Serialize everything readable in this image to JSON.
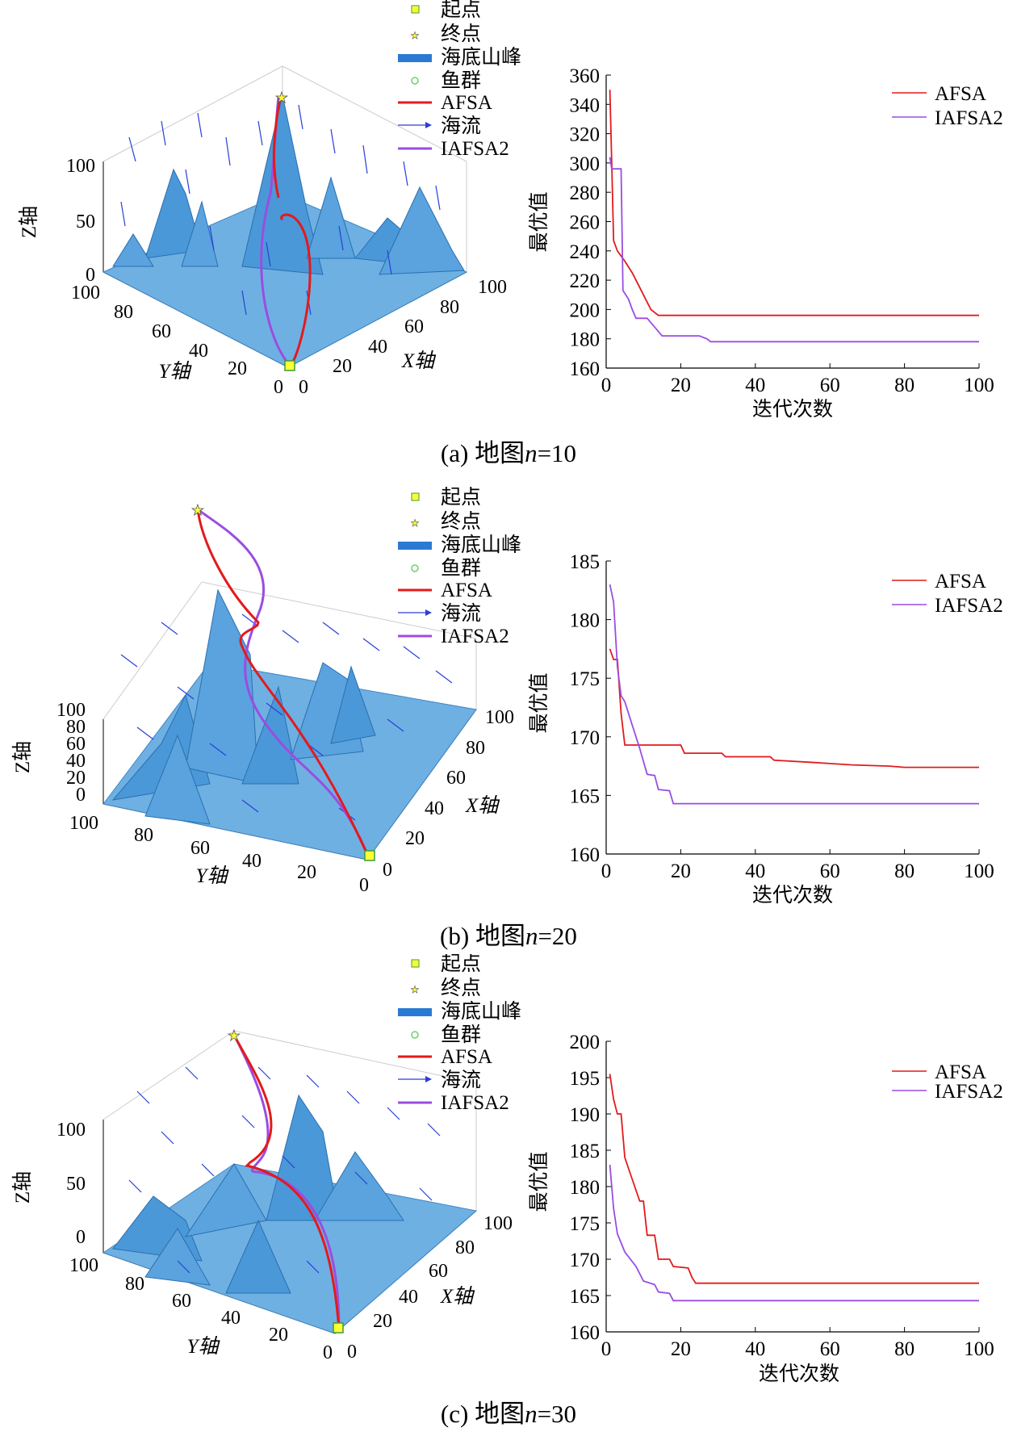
{
  "chart_data": [
    {
      "type": "line",
      "caption": "(a) 地图n=10",
      "caption_prefix": "(a) 地图",
      "caption_var": "n",
      "caption_suffix": "=10",
      "xlabel": "迭代次数",
      "ylabel": "最优值",
      "xlim": [
        0,
        100
      ],
      "ylim": [
        160,
        360
      ],
      "xticks": [
        0,
        20,
        40,
        60,
        80,
        100
      ],
      "yticks": [
        160,
        180,
        200,
        220,
        240,
        260,
        280,
        300,
        320,
        340,
        360
      ],
      "series": [
        {
          "name": "AFSA",
          "color": "#e31a1c",
          "points": [
            [
              1,
              350
            ],
            [
              1.5,
              300
            ],
            [
              2,
              247
            ],
            [
              3,
              240
            ],
            [
              5,
              233
            ],
            [
              7,
              225
            ],
            [
              8,
              220
            ],
            [
              10,
              210
            ],
            [
              12,
              200
            ],
            [
              14,
              196
            ],
            [
              100,
              196
            ]
          ]
        },
        {
          "name": "IAFSA2",
          "color": "#9b4de0",
          "points": [
            [
              1,
              304
            ],
            [
              1.5,
              296
            ],
            [
              4,
              296
            ],
            [
              4.5,
              213
            ],
            [
              6,
              207
            ],
            [
              7,
              200
            ],
            [
              8,
              194
            ],
            [
              11,
              194
            ],
            [
              13,
              188
            ],
            [
              15,
              182
            ],
            [
              25,
              182
            ],
            [
              27,
              180
            ],
            [
              28,
              178
            ],
            [
              100,
              178
            ]
          ]
        }
      ],
      "scene3d": {
        "zlabel": "Z轴",
        "ylabel": "Y轴",
        "xlabel": "X轴",
        "zticks": [
          "0",
          "50",
          "100"
        ],
        "yticks": [
          "100",
          "80",
          "60",
          "40",
          "20",
          "0"
        ],
        "xticks": [
          "0",
          "20",
          "40",
          "60",
          "80",
          "100"
        ],
        "legend": [
          "起点",
          "终点",
          "海底山峰",
          "鱼群",
          "AFSA",
          "海流",
          "IAFSA2"
        ]
      }
    },
    {
      "type": "line",
      "caption": "(b) 地图n=20",
      "caption_prefix": "(b) 地图",
      "caption_var": "n",
      "caption_suffix": "=20",
      "xlabel": "迭代次数",
      "ylabel": "最优值",
      "xlim": [
        0,
        100
      ],
      "ylim": [
        160,
        185
      ],
      "xticks": [
        0,
        20,
        40,
        60,
        80,
        100
      ],
      "yticks": [
        160,
        165,
        170,
        175,
        180,
        185
      ],
      "series": [
        {
          "name": "AFSA",
          "color": "#e31a1c",
          "points": [
            [
              1,
              177.5
            ],
            [
              2,
              176.6
            ],
            [
              3,
              176.6
            ],
            [
              4,
              172
            ],
            [
              5,
              169.3
            ],
            [
              20,
              169.3
            ],
            [
              21,
              168.6
            ],
            [
              31,
              168.6
            ],
            [
              32,
              168.3
            ],
            [
              44,
              168.3
            ],
            [
              45,
              168
            ],
            [
              56,
              167.8
            ],
            [
              66,
              167.6
            ],
            [
              76,
              167.5
            ],
            [
              80,
              167.4
            ],
            [
              100,
              167.4
            ]
          ]
        },
        {
          "name": "IAFSA2",
          "color": "#9b4de0",
          "points": [
            [
              1,
              183
            ],
            [
              2,
              181.5
            ],
            [
              3,
              176
            ],
            [
              4,
              173.5
            ],
            [
              5,
              173
            ],
            [
              7,
              171
            ],
            [
              9,
              169
            ],
            [
              11,
              166.8
            ],
            [
              13,
              166.7
            ],
            [
              14,
              165.5
            ],
            [
              17,
              165.4
            ],
            [
              18,
              164.3
            ],
            [
              100,
              164.3
            ]
          ]
        }
      ],
      "scene3d": {
        "zlabel": "Z轴",
        "ylabel": "Y轴",
        "xlabel": "X轴",
        "zticks": [
          "0",
          "20",
          "40",
          "60",
          "80",
          "100"
        ],
        "yticks": [
          "100",
          "80",
          "60",
          "40",
          "20",
          "0"
        ],
        "xticks": [
          "0",
          "20",
          "40",
          "60",
          "80",
          "100"
        ],
        "legend": [
          "起点",
          "终点",
          "海底山峰",
          "鱼群",
          "AFSA",
          "海流",
          "IAFSA2"
        ]
      }
    },
    {
      "type": "line",
      "caption": "(c) 地图n=30",
      "caption_prefix": "(c) 地图",
      "caption_var": "n",
      "caption_suffix": "=30",
      "xlabel": "迭代次数",
      "ylabel": "最优值",
      "xlim": [
        0,
        100
      ],
      "ylim": [
        160,
        200
      ],
      "xticks": [
        0,
        20,
        40,
        60,
        80,
        100
      ],
      "yticks": [
        160,
        165,
        170,
        175,
        180,
        185,
        190,
        195,
        200
      ],
      "series": [
        {
          "name": "AFSA",
          "color": "#e31a1c",
          "points": [
            [
              1,
              195.5
            ],
            [
              2,
              192
            ],
            [
              3,
              190
            ],
            [
              4,
              190
            ],
            [
              5,
              184
            ],
            [
              7,
              181
            ],
            [
              9,
              178
            ],
            [
              10,
              178
            ],
            [
              11,
              173.3
            ],
            [
              13,
              173.3
            ],
            [
              14,
              170
            ],
            [
              17,
              170
            ],
            [
              18,
              169
            ],
            [
              22,
              168.8
            ],
            [
              23,
              167.5
            ],
            [
              24,
              166.7
            ],
            [
              100,
              166.7
            ]
          ]
        },
        {
          "name": "IAFSA2",
          "color": "#9b4de0",
          "points": [
            [
              1,
              183
            ],
            [
              2,
              177
            ],
            [
              3,
              173.5
            ],
            [
              5,
              171
            ],
            [
              8,
              169
            ],
            [
              10,
              167
            ],
            [
              13,
              166.5
            ],
            [
              14,
              165.5
            ],
            [
              17,
              165.3
            ],
            [
              18,
              164.3
            ],
            [
              100,
              164.3
            ]
          ]
        }
      ],
      "scene3d": {
        "zlabel": "Z轴",
        "ylabel": "Y轴",
        "xlabel": "X轴",
        "zticks": [
          "0",
          "50",
          "100"
        ],
        "yticks": [
          "100",
          "80",
          "60",
          "40",
          "20",
          "0"
        ],
        "xticks": [
          "0",
          "20",
          "40",
          "60",
          "80",
          "100"
        ],
        "legend": [
          "起点",
          "终点",
          "海底山峰",
          "鱼群",
          "AFSA",
          "海流",
          "IAFSA2"
        ]
      }
    }
  ]
}
